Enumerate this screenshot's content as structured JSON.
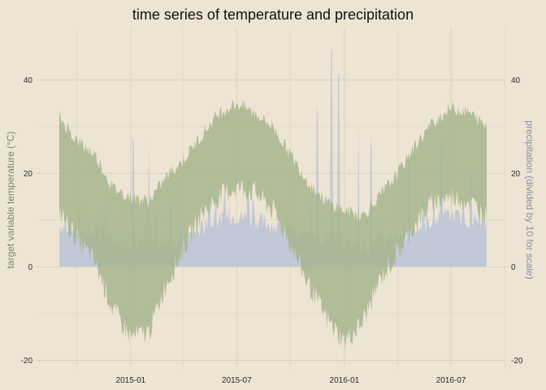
{
  "chart_data": {
    "type": "area",
    "title": "time series of temperature and precipitation",
    "ylabel_left": "target variable temperature (°C)",
    "ylabel_right": "precipitation (divided by 10 for scale)",
    "ylim": [
      -22,
      51
    ],
    "y_ticks": [
      -20,
      0,
      20,
      40
    ],
    "y_tick_labels": [
      "-20",
      "0",
      "20",
      "40"
    ],
    "x_range": [
      "2014-09-01",
      "2016-08-31"
    ],
    "x_ticks": [
      "2015-01-01",
      "2015-07-01",
      "2016-01-01",
      "2016-07-01"
    ],
    "x_tick_labels": [
      "2015-01",
      "2015-07",
      "2016-01",
      "2016-07"
    ],
    "x_minor_ticks": [
      "2014-10-01",
      "2015-04-01",
      "2015-10-01",
      "2016-04-01",
      "2016-10-01"
    ],
    "grid": true,
    "colors": {
      "background": "#ede4d3",
      "grid": "#d8cfbb",
      "temperature": "#a3b48b",
      "precipitation": "#b9c3d6"
    },
    "series": [
      {
        "kind": "temperature_range",
        "x": [
          "2014-09-01",
          "2014-10-01",
          "2014-11-01",
          "2014-12-01",
          "2015-01-01",
          "2015-02-01",
          "2015-03-01",
          "2015-04-01",
          "2015-05-01",
          "2015-06-01",
          "2015-07-01",
          "2015-08-01",
          "2015-09-01",
          "2015-10-01",
          "2015-11-01",
          "2015-12-01",
          "2016-01-01",
          "2016-02-01",
          "2016-03-01",
          "2016-04-01",
          "2016-05-01",
          "2016-06-01",
          "2016-07-01",
          "2016-08-01",
          "2016-08-31"
        ],
        "high": [
          32,
          27,
          24,
          17,
          15,
          14,
          19,
          23,
          28,
          33,
          35,
          33,
          30,
          24,
          18,
          14,
          12,
          11,
          15,
          20,
          26,
          31,
          34,
          33,
          30
        ],
        "low": [
          12,
          6,
          1,
          -9,
          -15,
          -14,
          -4,
          4,
          11,
          15,
          17,
          16,
          12,
          5,
          -4,
          -11,
          -16,
          -12,
          -3,
          3,
          9,
          14,
          15,
          14,
          11
        ]
      },
      {
        "kind": "precipitation",
        "x": [
          "2014-09-01",
          "2014-10-01",
          "2014-11-01",
          "2014-12-01",
          "2015-01-01",
          "2015-02-01",
          "2015-03-01",
          "2015-04-01",
          "2015-05-01",
          "2015-06-01",
          "2015-07-01",
          "2015-08-01",
          "2015-09-01",
          "2015-10-01",
          "2015-11-01",
          "2015-12-01",
          "2016-01-01",
          "2016-02-01",
          "2016-03-01",
          "2016-04-01",
          "2016-05-01",
          "2016-06-01",
          "2016-07-01",
          "2016-08-01",
          "2016-08-31"
        ],
        "base": [
          8,
          7,
          6,
          5,
          4,
          4,
          4,
          5,
          7,
          9,
          10,
          9,
          8,
          6,
          6,
          5,
          4,
          3,
          4,
          5,
          7,
          9,
          10,
          9,
          8
        ],
        "peaks": [
          {
            "x": "2014-11-20",
            "value": 19
          },
          {
            "x": "2015-01-05",
            "value": 29
          },
          {
            "x": "2015-02-01",
            "value": 27
          },
          {
            "x": "2015-03-10",
            "value": 16
          },
          {
            "x": "2015-05-15",
            "value": 18
          },
          {
            "x": "2015-07-20",
            "value": 22
          },
          {
            "x": "2015-11-15",
            "value": 35
          },
          {
            "x": "2015-12-10",
            "value": 48
          },
          {
            "x": "2015-12-22",
            "value": 43
          },
          {
            "x": "2016-01-25",
            "value": 31
          },
          {
            "x": "2016-02-15",
            "value": 28
          },
          {
            "x": "2016-04-20",
            "value": 26
          },
          {
            "x": "2016-05-15",
            "value": 16
          },
          {
            "x": "2016-06-15",
            "value": 29
          },
          {
            "x": "2016-08-05",
            "value": 21
          }
        ]
      }
    ]
  }
}
